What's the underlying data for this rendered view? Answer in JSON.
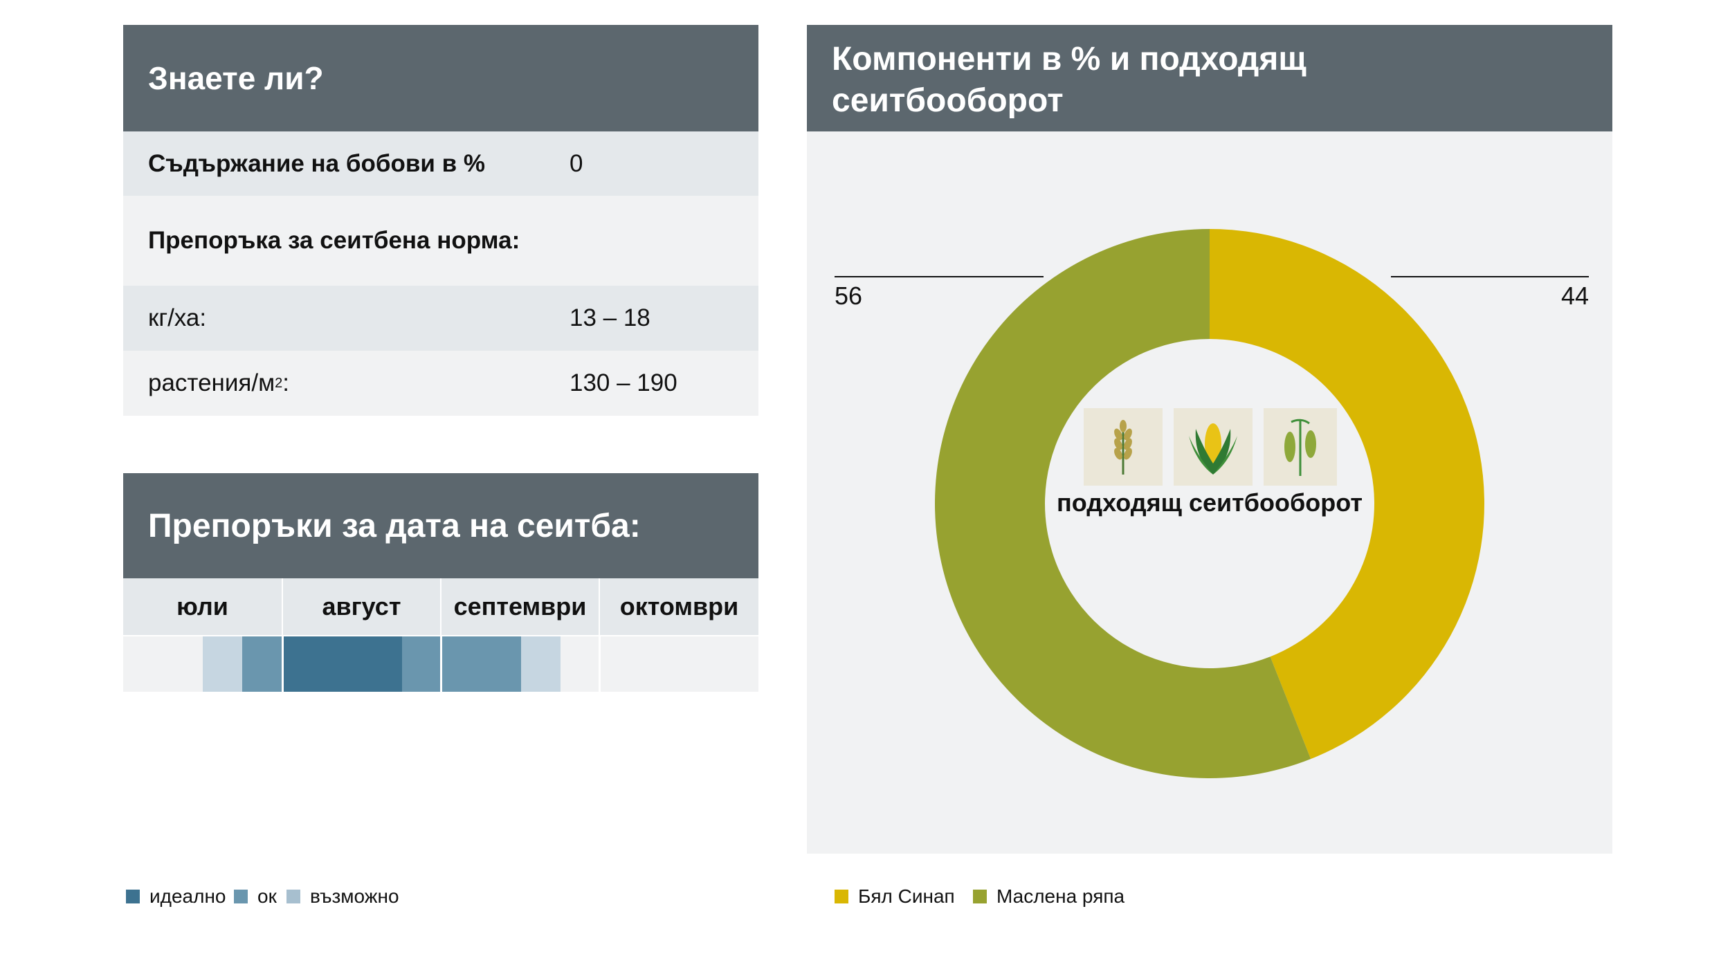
{
  "info": {
    "title": "Знаете ли?",
    "legume_label": "Съдържание на бобови в %",
    "legume_value": "0",
    "seed_rate_label": "Препоръка за сеитбена норма:",
    "kg_label": "кг/ха:",
    "kg_value": "13 – 18",
    "plants_label": "растения/м",
    "plants_sup": "2",
    "plants_colon": ":",
    "plants_value": "130 – 190"
  },
  "sowing": {
    "title": "Препоръки за дата на сеитба:",
    "months": [
      "юли",
      "август",
      "септември",
      "октомври"
    ],
    "legend": [
      {
        "label": "идеално",
        "color": "#3d7290"
      },
      {
        "label": "ок",
        "color": "#6a96ae"
      },
      {
        "label": "възможно",
        "color": "#a7bfcf"
      }
    ],
    "timeline": [
      {
        "start": 0.5,
        "end": 0.75,
        "level": "possible"
      },
      {
        "start": 0.75,
        "end": 1.0,
        "level": "ok"
      },
      {
        "start": 1.0,
        "end": 1.75,
        "level": "ideal"
      },
      {
        "start": 1.75,
        "end": 2.0,
        "level": "ok"
      },
      {
        "start": 2.0,
        "end": 2.5,
        "level": "ok"
      },
      {
        "start": 2.5,
        "end": 2.75,
        "level": "possible"
      }
    ],
    "level_colors": {
      "ideal": "#3d7290",
      "ok": "#6a96ae",
      "possible": "#c6d6e1"
    }
  },
  "components": {
    "title_line1": "Компоненти в % и подходящ",
    "title_line2": "сеитбооборот",
    "center_label": "подходящ сеитбооборот",
    "icons": [
      "wheat-icon",
      "corn-icon",
      "pea-icon"
    ]
  },
  "chart_data": {
    "type": "pie",
    "categories": [
      "Бял Синап",
      "Маслена ряпа"
    ],
    "values": [
      44,
      56
    ],
    "colors": [
      "#d9b703",
      "#97a230"
    ],
    "labels": [
      "44",
      "56"
    ],
    "legend_placement": "bottom-left"
  }
}
